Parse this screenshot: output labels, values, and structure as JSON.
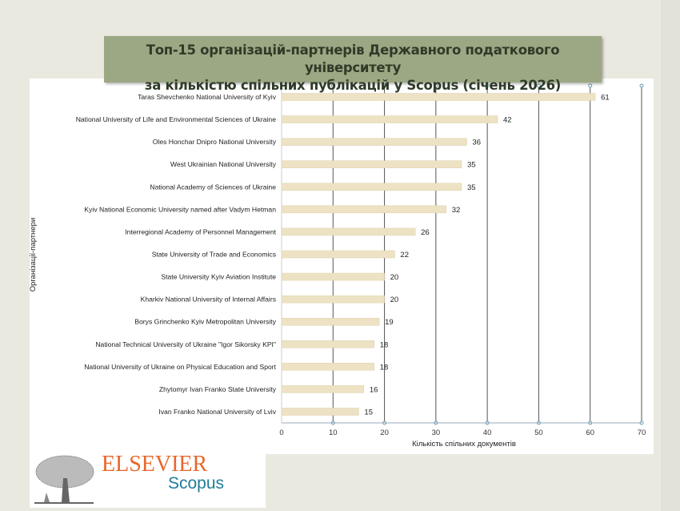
{
  "title_line1": "Топ-15 організацій-партнерів Державного податкового університету",
  "title_line2": "за кількістю спільних публікацій у Scopus (січень 2026)",
  "logo": {
    "brand": "ELSEVIER",
    "product": "Scopus"
  },
  "colors": {
    "bar": "#ede2c4",
    "title_bg": "#9ca884",
    "grid": "#555555",
    "marker": "#6a9bb0"
  },
  "chart_data": {
    "type": "bar",
    "orientation": "horizontal",
    "xlabel": "Кількість спільних документів",
    "ylabel": "Організації-партнери",
    "xlim": [
      0,
      70
    ],
    "xticks": [
      0,
      10,
      20,
      30,
      40,
      50,
      60,
      70
    ],
    "grid": true,
    "categories": [
      "Taras Shevchenko National University of Kyiv",
      "National University of Life and Environmental Sciences of Ukraine",
      "Oles Honchar Dnipro National University",
      "West Ukrainian National University",
      "National Academy of Sciences of Ukraine",
      "Kyiv National Economic University named after Vadym Hetman",
      "Interregional Academy of Personnel Management",
      "State University of Trade and Economics",
      "State University Kyiv Aviation Institute",
      "Kharkiv National University of Internal Affairs",
      "Borys Grinchenko Kyiv Metropolitan University",
      "National Technical University of Ukraine \"Igor Sikorsky KPI\"",
      "National University of Ukraine on Physical Education and Sport",
      "Zhytomyr Ivan Franko State University",
      "Ivan Franko National University of Lviv"
    ],
    "values": [
      61,
      42,
      36,
      35,
      35,
      32,
      26,
      22,
      20,
      20,
      19,
      18,
      18,
      16,
      15
    ]
  }
}
